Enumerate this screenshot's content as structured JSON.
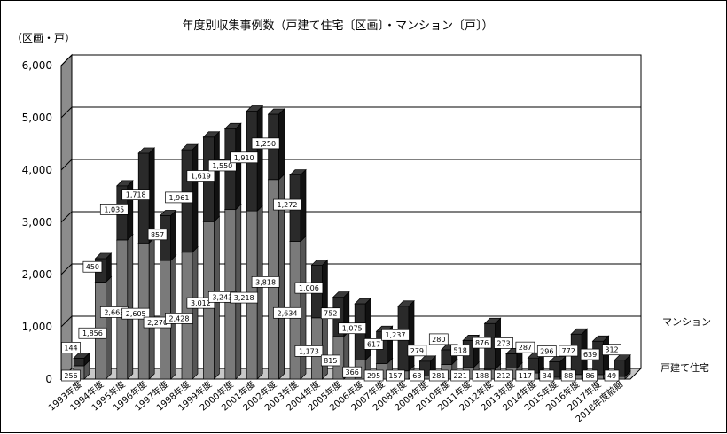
{
  "chart_data": {
    "type": "bar",
    "stacked": true,
    "three_d": true,
    "title": "年度別収集事例数（戸建て住宅〔区画〕・マンション〔戸〕）",
    "unit_label": "（区画・戸）",
    "ylim": [
      0,
      6000
    ],
    "yticks": [
      "0",
      "1,000",
      "2,000",
      "3,000",
      "4,000",
      "5,000",
      "6,000"
    ],
    "categories": [
      "1993年度",
      "1994年度",
      "1995年度",
      "1996年度",
      "1997年度",
      "1998年度",
      "1999年度",
      "2000年度",
      "2001年度",
      "2002年度",
      "2003年度",
      "2004年度",
      "2005年度",
      "2006年度",
      "2007年度",
      "2008年度",
      "2009年度",
      "2010年度",
      "2011年度",
      "2012年度",
      "2013年度",
      "2014年度",
      "2015年度",
      "2016年度",
      "2017年度",
      "2018年度前期"
    ],
    "series": [
      {
        "name": "戸建て住宅",
        "color": "#7a7a7a",
        "values": [
          256,
          1856,
          2663,
          2605,
          2270,
          2428,
          3012,
          3243,
          3218,
          3818,
          2634,
          1173,
          815,
          366,
          295,
          157,
          63,
          281,
          221,
          188,
          212,
          117,
          34,
          88,
          86,
          49
        ],
        "labels": [
          "256",
          "1,856",
          "2,663",
          "2,605",
          "2,270",
          "2,428",
          "3,012",
          "3,243",
          "3,218",
          "3,818",
          "2,634",
          "1,173",
          "815",
          "366",
          "295",
          "157",
          "63",
          "281",
          "221",
          "188",
          "212",
          "117",
          "34",
          "88",
          "86",
          "49"
        ]
      },
      {
        "name": "マンション",
        "color": "#1e1e1e",
        "values": [
          144,
          450,
          1035,
          1718,
          857,
          1961,
          1619,
          1550,
          1910,
          1250,
          1272,
          1006,
          752,
          1075,
          617,
          1237,
          279,
          280,
          518,
          876,
          273,
          287,
          296,
          772,
          639,
          312
        ],
        "labels": [
          "144",
          "450",
          "1,035",
          "1,718",
          "857",
          "1,961",
          "1,619",
          "1,550",
          "1,910",
          "1,250",
          "1,272",
          "1,006",
          "752",
          "1,075",
          "617",
          "1,237",
          "279",
          "280",
          "518",
          "876",
          "273",
          "287",
          "296",
          "772",
          "639",
          "312"
        ]
      }
    ],
    "grid": true,
    "legend": "right, beside each series"
  }
}
